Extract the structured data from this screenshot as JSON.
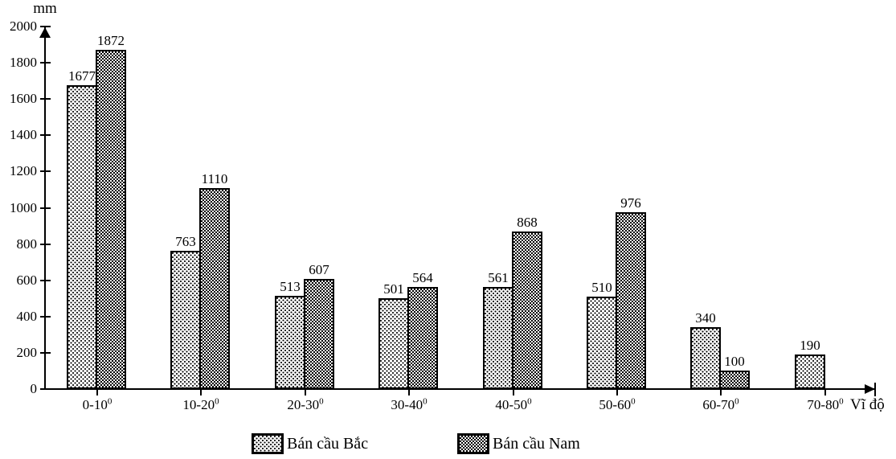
{
  "chart_data": {
    "type": "bar",
    "ylabel": "mm",
    "xlabel": "Vĩ độ",
    "ylim": [
      0,
      2000
    ],
    "ytick_step": 200,
    "yticks": [
      0,
      200,
      400,
      600,
      800,
      1000,
      1200,
      1400,
      1600,
      1800,
      2000
    ],
    "categories": [
      "0-10",
      "10-20",
      "20-30",
      "30-40",
      "40-50",
      "50-60",
      "60-70",
      "70-80"
    ],
    "category_superscript": "0",
    "grid": false,
    "legend_position": "bottom",
    "colors": {
      "foreground": "#000000",
      "background": "#ffffff"
    },
    "series": [
      {
        "name": "Bán cầu Bắc",
        "pattern": "dots",
        "values": [
          1677,
          763,
          513,
          501,
          561,
          510,
          340,
          190
        ]
      },
      {
        "name": "Bán cầu Nam",
        "pattern": "checker",
        "values": [
          1872,
          1110,
          607,
          564,
          868,
          976,
          100,
          null
        ]
      }
    ]
  }
}
